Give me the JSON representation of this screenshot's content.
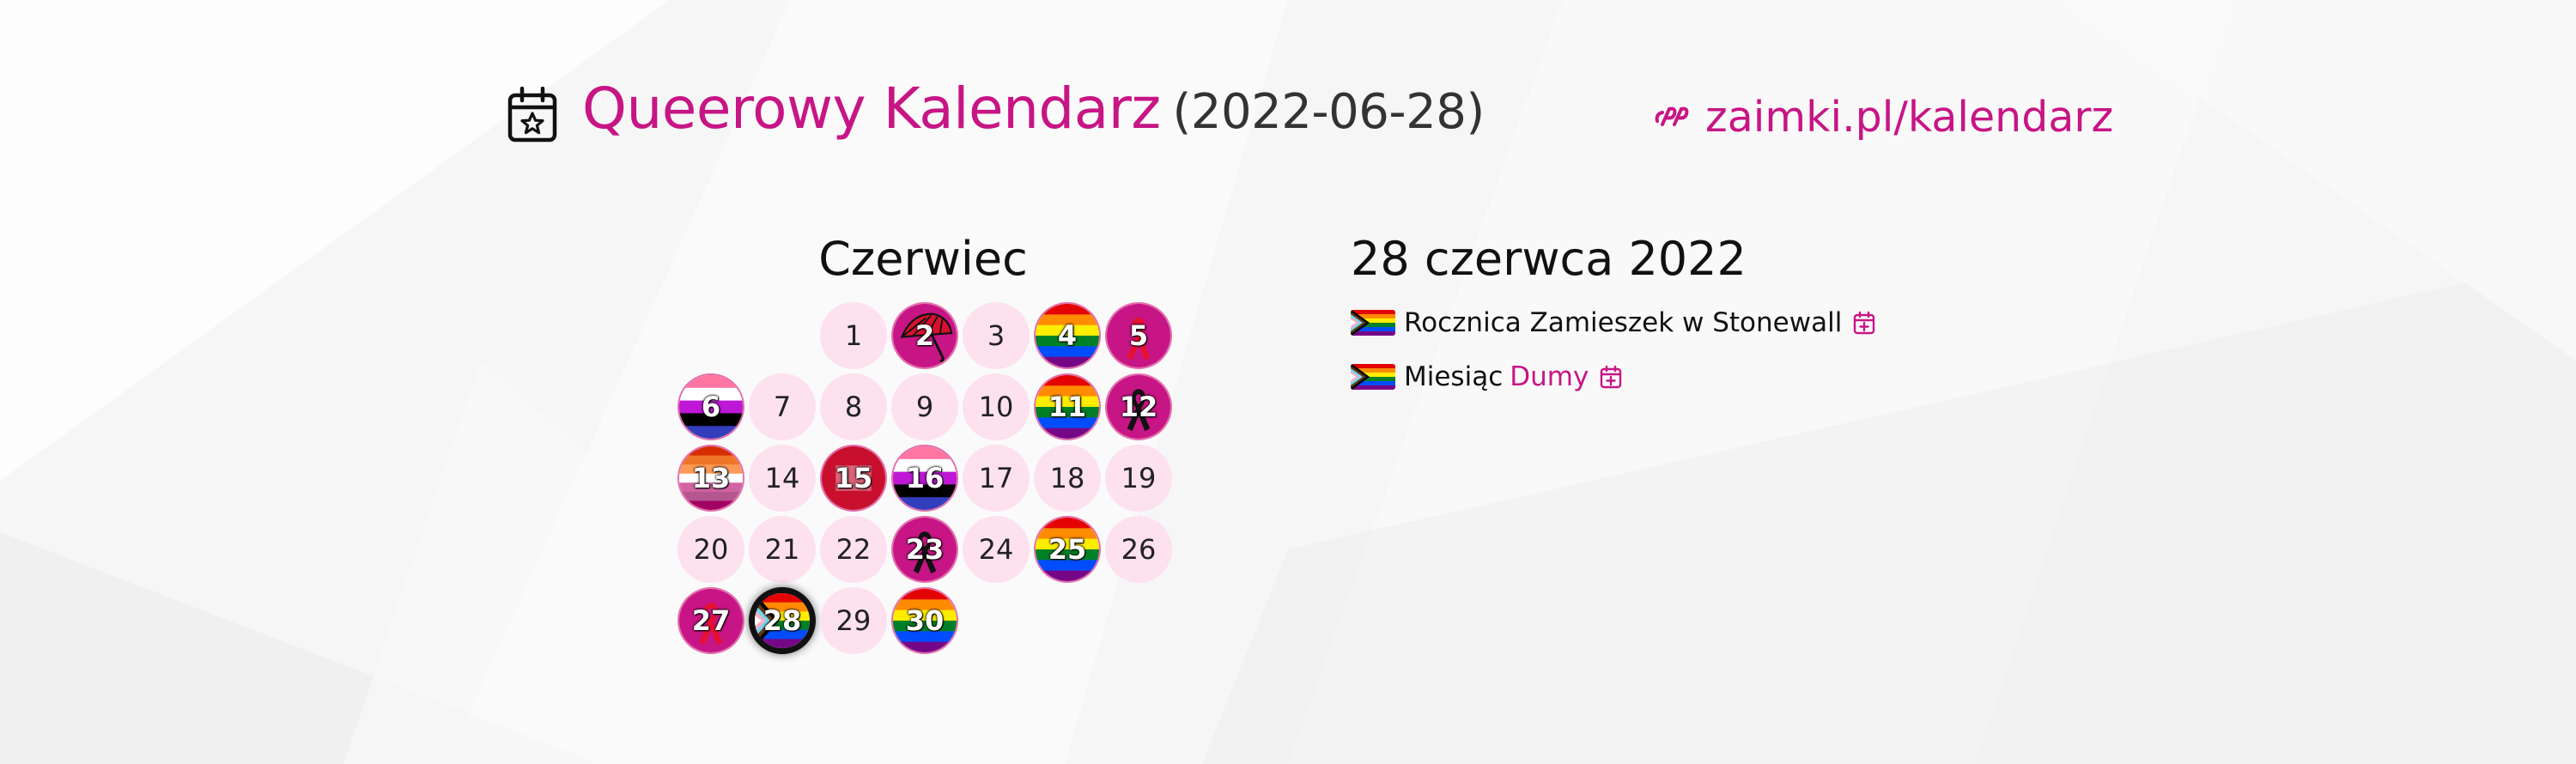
{
  "header": {
    "icon": "calendar-star-icon",
    "title": "Queerowy Kalendarz",
    "date": "(2022-06-28)",
    "link_icon": "zaimki-logo-icon",
    "link_text": "zaimki.pl/kalendarz"
  },
  "calendar": {
    "month": "Czerwiec",
    "days": [
      {
        "num": "1",
        "col": 2,
        "row": 0,
        "flag": null
      },
      {
        "num": "2",
        "col": 3,
        "row": 0,
        "flag": "umbrella"
      },
      {
        "num": "3",
        "col": 4,
        "row": 0,
        "flag": null
      },
      {
        "num": "4",
        "col": 5,
        "row": 0,
        "flag": "rainbow"
      },
      {
        "num": "5",
        "col": 6,
        "row": 0,
        "flag": "ribbon-red"
      },
      {
        "num": "6",
        "col": 0,
        "row": 1,
        "flag": "genderfluid"
      },
      {
        "num": "7",
        "col": 1,
        "row": 1,
        "flag": null
      },
      {
        "num": "8",
        "col": 2,
        "row": 1,
        "flag": null
      },
      {
        "num": "9",
        "col": 3,
        "row": 1,
        "flag": null
      },
      {
        "num": "10",
        "col": 4,
        "row": 1,
        "flag": null
      },
      {
        "num": "11",
        "col": 5,
        "row": 1,
        "flag": "rainbow"
      },
      {
        "num": "12",
        "col": 6,
        "row": 1,
        "flag": "ribbon-black"
      },
      {
        "num": "13",
        "col": 0,
        "row": 2,
        "flag": "lesbian"
      },
      {
        "num": "14",
        "col": 1,
        "row": 2,
        "flag": null
      },
      {
        "num": "15",
        "col": 2,
        "row": 2,
        "flag": "red"
      },
      {
        "num": "16",
        "col": 3,
        "row": 2,
        "flag": "genderfluid2"
      },
      {
        "num": "17",
        "col": 4,
        "row": 2,
        "flag": null
      },
      {
        "num": "18",
        "col": 5,
        "row": 2,
        "flag": null
      },
      {
        "num": "19",
        "col": 6,
        "row": 2,
        "flag": null
      },
      {
        "num": "20",
        "col": 0,
        "row": 3,
        "flag": null
      },
      {
        "num": "21",
        "col": 1,
        "row": 3,
        "flag": null
      },
      {
        "num": "22",
        "col": 2,
        "row": 3,
        "flag": null
      },
      {
        "num": "23",
        "col": 3,
        "row": 3,
        "flag": "ribbon-black"
      },
      {
        "num": "24",
        "col": 4,
        "row": 3,
        "flag": null
      },
      {
        "num": "25",
        "col": 5,
        "row": 3,
        "flag": "rainbow"
      },
      {
        "num": "26",
        "col": 6,
        "row": 3,
        "flag": null
      },
      {
        "num": "27",
        "col": 0,
        "row": 4,
        "flag": "ribbon-red"
      },
      {
        "num": "28",
        "col": 1,
        "row": 4,
        "flag": "progress",
        "today": true
      },
      {
        "num": "29",
        "col": 2,
        "row": 4,
        "flag": null
      },
      {
        "num": "30",
        "col": 3,
        "row": 4,
        "flag": "rainbow"
      }
    ]
  },
  "events": {
    "date": "28 czerwca 2022",
    "items": [
      {
        "flag": "progress-flag-icon",
        "text": "Rocznica Zamieszek w Stonewall",
        "link": "",
        "icon": "calendar-plus-icon"
      },
      {
        "flag": "progress-flag-icon",
        "text": "Miesiąc",
        "link": "Dumy",
        "icon": "calendar-plus-icon"
      }
    ]
  },
  "colors": {
    "accent": "#c71585",
    "day_bg": "#fde1ef"
  }
}
